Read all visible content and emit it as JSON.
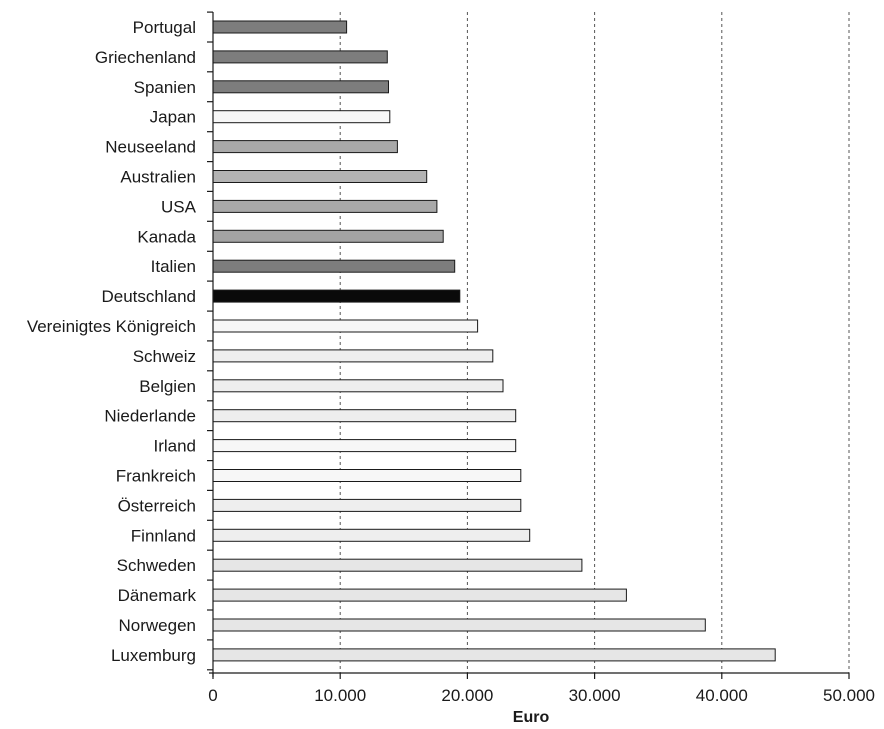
{
  "chart_data": {
    "type": "bar",
    "orientation": "horizontal",
    "title": "",
    "xlabel": "Euro",
    "ylabel": "",
    "xlim": [
      0,
      50000
    ],
    "x_ticks": [
      0,
      10000,
      20000,
      30000,
      40000,
      50000
    ],
    "x_tick_labels": [
      "0",
      "10.000",
      "20.000",
      "30.000",
      "40.000",
      "50.000"
    ],
    "grid": "vertical dashed",
    "legend": "none",
    "categories": [
      "Portugal",
      "Griechenland",
      "Spanien",
      "Japan",
      "Neuseeland",
      "Australien",
      "USA",
      "Kanada",
      "Italien",
      "Deutschland",
      "Vereinigtes Königreich",
      "Schweiz",
      "Belgien",
      "Niederlande",
      "Irland",
      "Frankreich",
      "Österreich",
      "Finnland",
      "Schweden",
      "Dänemark",
      "Norwegen",
      "Luxemburg"
    ],
    "values": [
      10500,
      13700,
      13800,
      13900,
      14500,
      16800,
      17600,
      18100,
      19000,
      19400,
      20800,
      22000,
      22800,
      23800,
      23800,
      24200,
      24200,
      24900,
      29000,
      32500,
      38700,
      44200
    ],
    "bar_colors": [
      "#7d7d7d",
      "#7d7d7d",
      "#7d7d7d",
      "#f7f7f7",
      "#a9a9a9",
      "#b3b3b3",
      "#a9a9a9",
      "#a3a3a3",
      "#7d7d7d",
      "#0a0a0a",
      "#f7f7f7",
      "#eeeeee",
      "#eeeeee",
      "#eeeeee",
      "#f7f7f7",
      "#f7f7f7",
      "#eeeeee",
      "#eeeeee",
      "#e6e6e6",
      "#e6e6e6",
      "#e6e6e6",
      "#e6e6e6"
    ]
  }
}
